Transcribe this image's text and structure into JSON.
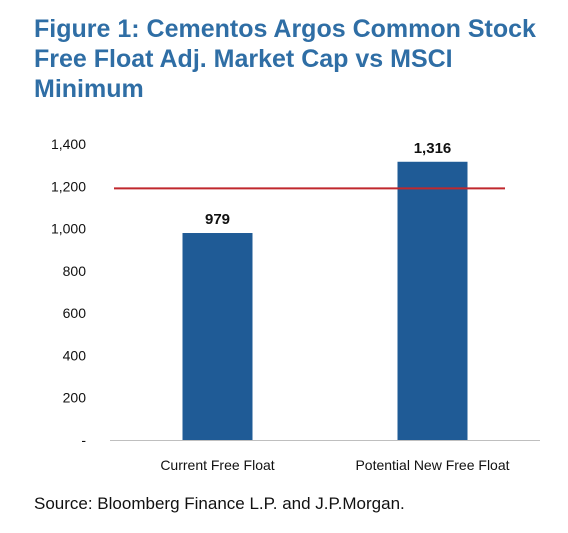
{
  "title_lines": [
    "Figure 1: Cementos Argos Common Stock",
    "Free Float Adj. Market Cap vs MSCI",
    "Minimum"
  ],
  "source": "Source: Bloomberg Finance L.P. and J.P.Morgan.",
  "colors": {
    "title": "#2f6ea5",
    "bar": "#1f5b96",
    "threshold_line": "#c0282d",
    "axis": "#bfbfbf",
    "text": "#111111"
  },
  "chart_data": {
    "type": "bar",
    "categories": [
      "Current Free Float",
      "Potential New Free Float"
    ],
    "values": [
      979,
      1316
    ],
    "data_labels": [
      "979",
      "1,316"
    ],
    "ylim": [
      0,
      1400
    ],
    "yticks": [
      0,
      200,
      400,
      600,
      800,
      1000,
      1200,
      1400
    ],
    "ytick_labels": [
      "-",
      "200",
      "400",
      "600",
      "800",
      "1,000",
      "1,200",
      "1,400"
    ],
    "threshold": 1190,
    "grid": false,
    "legend": "none"
  }
}
